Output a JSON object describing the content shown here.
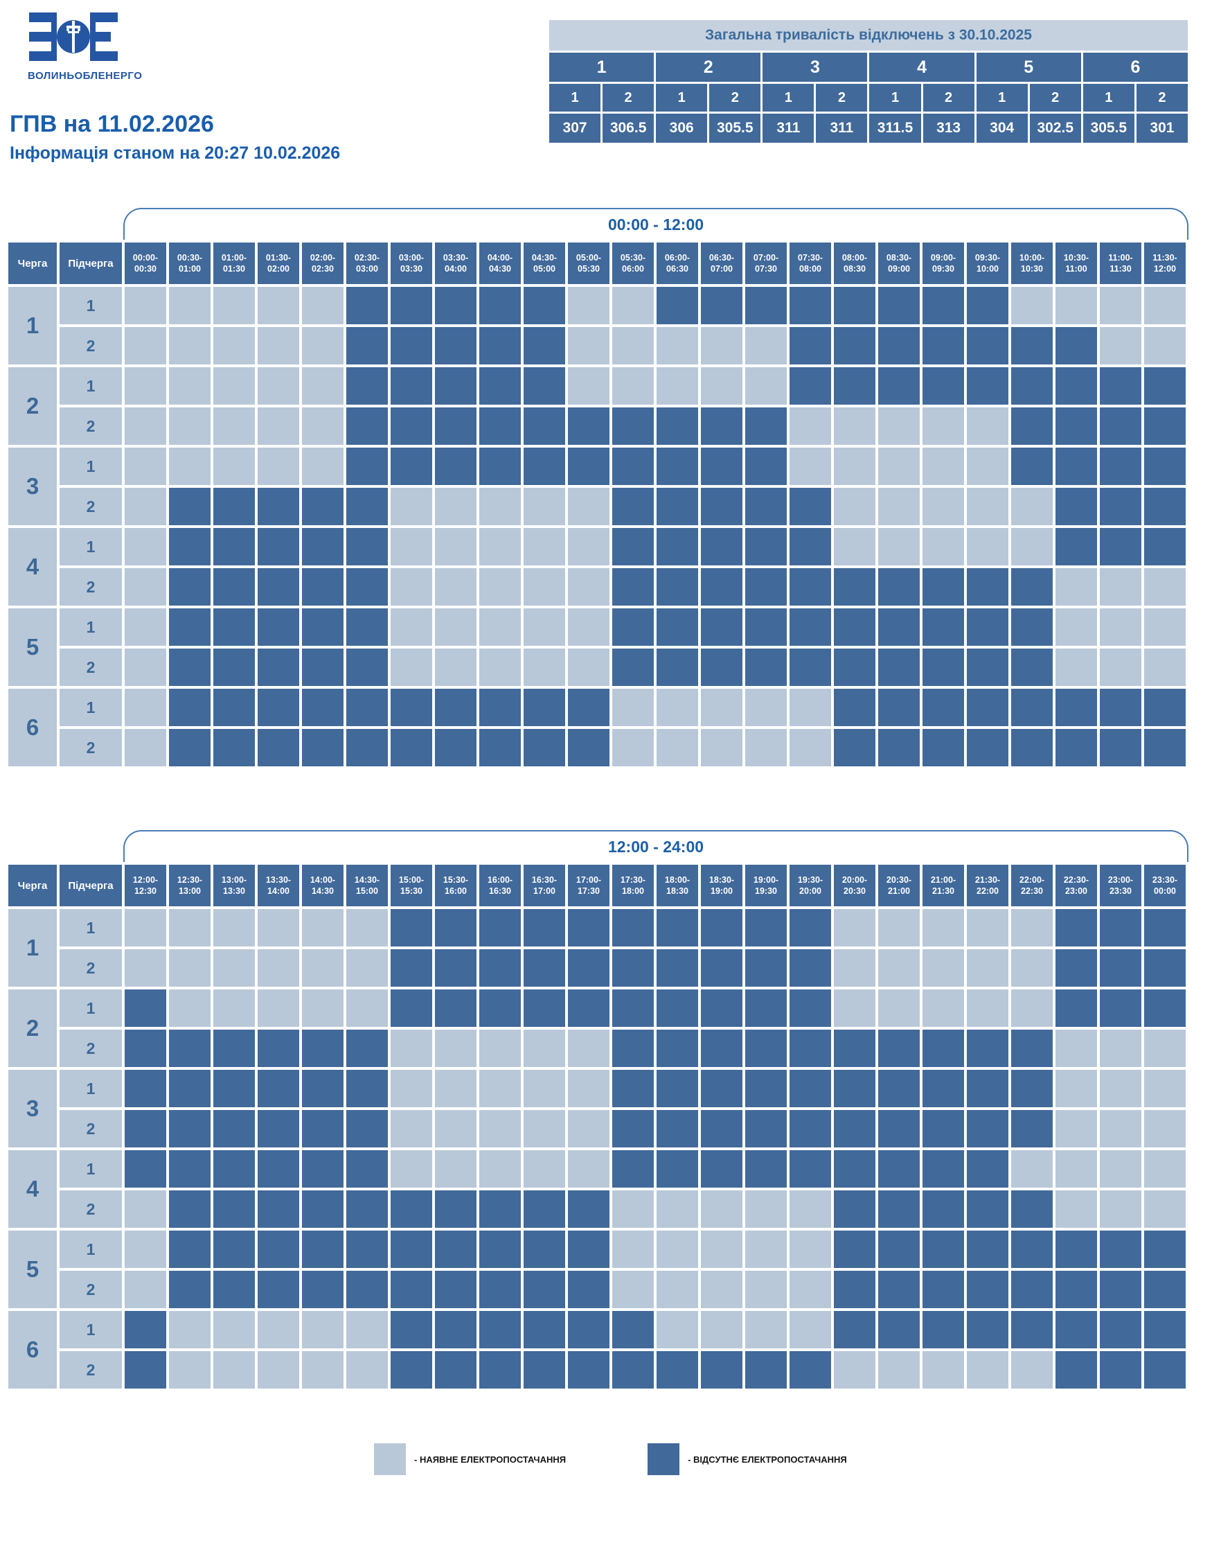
{
  "logo": {
    "name": "ВОЛИНЬОБЛЕНЕРГО"
  },
  "header": {
    "title": "ГПВ на 11.02.2026",
    "subtitle": "Інформація станом на 20:27 10.02.2026"
  },
  "summary": {
    "title": "Загальна тривалість відключень з 30.10.2025",
    "groups": [
      "1",
      "2",
      "3",
      "4",
      "5",
      "6"
    ],
    "sub_labels": [
      "1",
      "2",
      "1",
      "2",
      "1",
      "2",
      "1",
      "2",
      "1",
      "2",
      "1",
      "2"
    ],
    "values": [
      "307",
      "306.5",
      "306",
      "305.5",
      "311",
      "311",
      "311.5",
      "313",
      "304",
      "302.5",
      "305.5",
      "301"
    ]
  },
  "schedule": {
    "queue_header": "Черга",
    "subqueue_header": "Підчерга",
    "tables": [
      {
        "band_label": "00:00 - 12:00",
        "time_slots": [
          "00:00-00:30",
          "00:30-01:00",
          "01:00-01:30",
          "01:30-02:00",
          "02:00-02:30",
          "02:30-03:00",
          "03:00-03:30",
          "03:30-04:00",
          "04:00-04:30",
          "04:30-05:00",
          "05:00-05:30",
          "05:30-06:00",
          "06:00-06:30",
          "06:30-07:00",
          "07:00-07:30",
          "07:30-08:00",
          "08:00-08:30",
          "08:30-09:00",
          "09:00-09:30",
          "09:30-10:00",
          "10:00-10:30",
          "10:30-11:00",
          "11:00-11:30",
          "11:30-12:00"
        ],
        "rows": [
          {
            "queue": "1",
            "subqueue": "1",
            "cells": "000001111100111111110000"
          },
          {
            "queue": "1",
            "subqueue": "2",
            "cells": "000001111100000111111100"
          },
          {
            "queue": "2",
            "subqueue": "1",
            "cells": "000001111100000111111111"
          },
          {
            "queue": "2",
            "subqueue": "2",
            "cells": "000001111111111000001111"
          },
          {
            "queue": "3",
            "subqueue": "1",
            "cells": "000001111111111000001111"
          },
          {
            "queue": "3",
            "subqueue": "2",
            "cells": "011111000001111100000111"
          },
          {
            "queue": "4",
            "subqueue": "1",
            "cells": "011111000001111100000111"
          },
          {
            "queue": "4",
            "subqueue": "2",
            "cells": "011111000001111111111000"
          },
          {
            "queue": "5",
            "subqueue": "1",
            "cells": "011111000001111111111000"
          },
          {
            "queue": "5",
            "subqueue": "2",
            "cells": "011111000001111111111000"
          },
          {
            "queue": "6",
            "subqueue": "1",
            "cells": "011111111110000011111111"
          },
          {
            "queue": "6",
            "subqueue": "2",
            "cells": "011111111110000011111111"
          }
        ]
      },
      {
        "band_label": "12:00 - 24:00",
        "time_slots": [
          "12:00-12:30",
          "12:30-13:00",
          "13:00-13:30",
          "13:30-14:00",
          "14:00-14:30",
          "14:30-15:00",
          "15:00-15:30",
          "15:30-16:00",
          "16:00-16:30",
          "16:30-17:00",
          "17:00-17:30",
          "17:30-18:00",
          "18:00-18:30",
          "18:30-19:00",
          "19:00-19:30",
          "19:30-20:00",
          "20:00-20:30",
          "20:30-21:00",
          "21:00-21:30",
          "21:30-22:00",
          "22:00-22:30",
          "22:30-23:00",
          "23:00-23:30",
          "23:30-00:00"
        ],
        "rows": [
          {
            "queue": "1",
            "subqueue": "1",
            "cells": "000000111111111100000111"
          },
          {
            "queue": "1",
            "subqueue": "2",
            "cells": "000000111111111100000111"
          },
          {
            "queue": "2",
            "subqueue": "1",
            "cells": "100000111111111100000111"
          },
          {
            "queue": "2",
            "subqueue": "2",
            "cells": "111111000001111111111000"
          },
          {
            "queue": "3",
            "subqueue": "1",
            "cells": "111111000001111111111000"
          },
          {
            "queue": "3",
            "subqueue": "2",
            "cells": "111111000001111111111000"
          },
          {
            "queue": "4",
            "subqueue": "1",
            "cells": "111111000001111111110000"
          },
          {
            "queue": "4",
            "subqueue": "2",
            "cells": "011111111110000011111000"
          },
          {
            "queue": "5",
            "subqueue": "1",
            "cells": "011111111110000011111111"
          },
          {
            "queue": "5",
            "subqueue": "2",
            "cells": "011111111110000011111111"
          },
          {
            "queue": "6",
            "subqueue": "1",
            "cells": "100000111111000011111111"
          },
          {
            "queue": "6",
            "subqueue": "2",
            "cells": "100000111111111100000111"
          }
        ]
      }
    ]
  },
  "legend": {
    "items": [
      {
        "state": "on",
        "label": "- НАЯВНЕ ЕЛЕКТРОПОСТАЧАННЯ"
      },
      {
        "state": "off",
        "label": "- ВІДСУТНЄ ЕЛЕКТРОПОСТАЧАННЯ"
      }
    ]
  },
  "colors": {
    "power_on": "#B9C8D8",
    "power_off": "#41699A",
    "table_blue": "#41699A",
    "summary_title_bg": "#C5D1DE",
    "accent_blue": "#1A5DAB",
    "logo_blue": "#2456A4"
  }
}
